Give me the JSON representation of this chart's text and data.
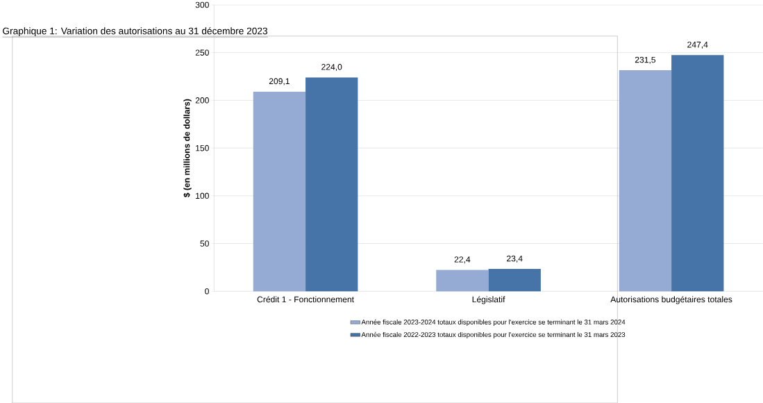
{
  "chart_data": {
    "type": "bar",
    "title": "Graphique 1: Variation des autorisations au 31 décembre 2023",
    "ylabel": "$ (en millions de dollars)",
    "categories": [
      "Crédit 1 - Fonctionnement",
      "Législatif",
      "Autorisations budgétaires totales"
    ],
    "series": [
      {
        "name": "Année fiscale 2023-2024 totaux disponibles pour l'exercice se terminant le 31 mars 2024",
        "color": "#95abd3",
        "values": [
          209.1,
          22.4,
          231.5
        ],
        "value_labels": [
          "209,1",
          "22,4",
          "231,5"
        ]
      },
      {
        "name": "Année fiscale 2022-2023 totaux disponibles pour l'exercice se terminant le 31 mars 2023",
        "color": "#4674a8",
        "values": [
          224.0,
          23.4,
          247.4
        ],
        "value_labels": [
          "224,0",
          "23,4",
          "247,4"
        ]
      }
    ],
    "ylim": [
      0,
      300
    ],
    "yticks": [
      0,
      50,
      100,
      150,
      200,
      250,
      300
    ],
    "grid": "y",
    "legend": "bottom"
  }
}
